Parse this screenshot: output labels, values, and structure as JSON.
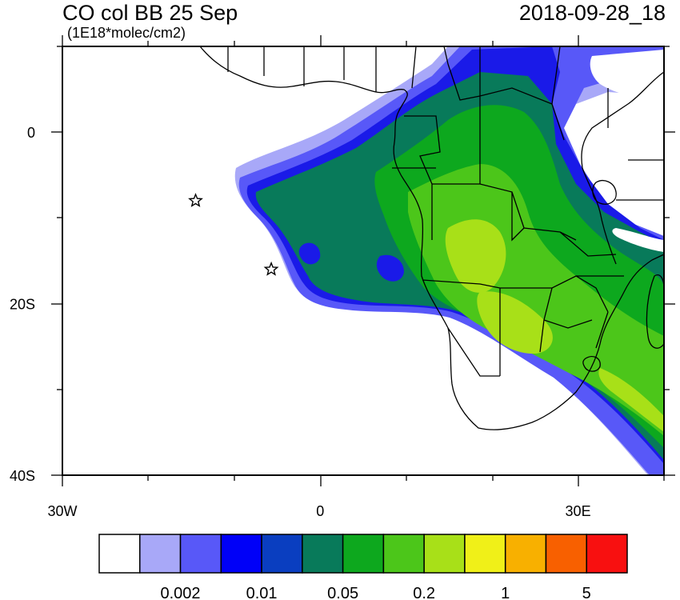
{
  "header": {
    "title": "CO col BB 25 Sep",
    "units": "(1E18*molec/cm2)",
    "timestamp": "2018-09-28_18"
  },
  "axes": {
    "x_ticks": [
      {
        "lon": -30,
        "label": "30W"
      },
      {
        "lon": 0,
        "label": "0"
      },
      {
        "lon": 30,
        "label": "30E"
      }
    ],
    "y_ticks": [
      {
        "lat": 0,
        "label": "0"
      },
      {
        "lat": -20,
        "label": "20S"
      },
      {
        "lat": -40,
        "label": "40S"
      }
    ],
    "lon_range": [
      -30,
      40
    ],
    "lat_range": [
      -40,
      10
    ]
  },
  "colorbar": {
    "colors": [
      "#ffffff",
      "#a8a8f8",
      "#5858f8",
      "#0000f8",
      "#0a3ec0",
      "#087a5a",
      "#0da81e",
      "#4cc61a",
      "#a8e018",
      "#f0f018",
      "#f8b000",
      "#f86000",
      "#f81010"
    ],
    "labels": [
      "0.002",
      "0.01",
      "0.05",
      "0.2",
      "1",
      "5"
    ]
  },
  "markers": [
    {
      "name": "star",
      "lon": -14.5,
      "lat": -8
    },
    {
      "name": "star",
      "lon": -5.7,
      "lat": -16
    }
  ],
  "legend_colors": {
    "white": "#ffffff",
    "light_blue": "#a8a8f8",
    "mid_blue": "#5858f8",
    "blue": "#0000f8",
    "dark_blue": "#0a3ec0",
    "teal": "#087a5a",
    "green": "#0da81e",
    "light_green": "#4cc61a",
    "yellow_green": "#a8e018"
  }
}
